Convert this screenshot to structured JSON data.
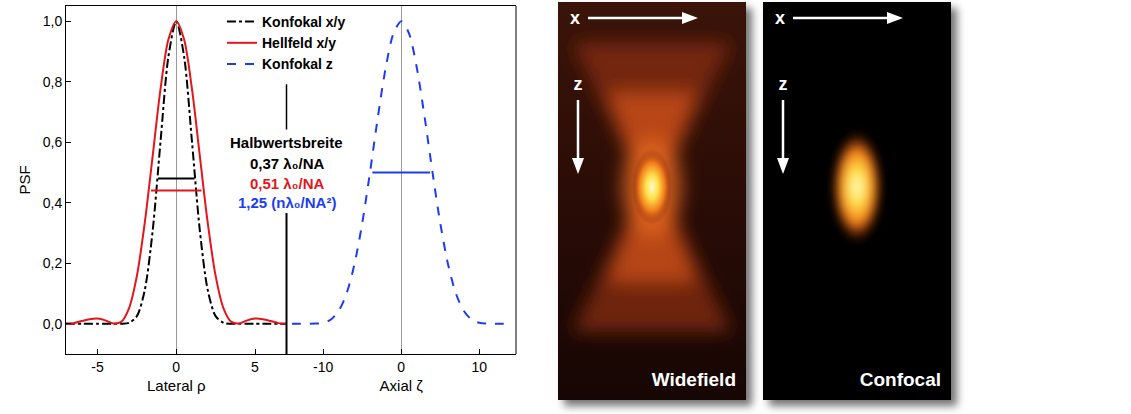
{
  "chart_data": {
    "type": "line",
    "y_label": "PSF",
    "ylim": [
      -0.1,
      1.05
    ],
    "yticks": [
      {
        "value": 0,
        "label": "0,0"
      },
      {
        "value": 0.2,
        "label": "0,2"
      },
      {
        "value": 0.4,
        "label": "0,4"
      },
      {
        "value": 0.6,
        "label": "0,6"
      },
      {
        "value": 0.8,
        "label": "0,8"
      },
      {
        "value": 1,
        "label": "1,0"
      }
    ],
    "grid": false,
    "legend": "top",
    "panels": [
      {
        "x_label": "Lateral ρ",
        "xlim": [
          -7,
          7
        ],
        "xticks": [
          -5,
          0,
          5
        ],
        "series": [
          {
            "name": "Konfokal x/y",
            "color": "#000000",
            "line_style": "dashdot",
            "x": [
              -7,
              -6.5,
              -6,
              -5.5,
              -5,
              -4.5,
              -4,
              -3.5,
              -3,
              -2.5,
              -2,
              -1.5,
              -1,
              -0.5,
              0,
              0.5,
              1,
              1.5,
              2,
              2.5,
              3,
              3.5,
              4,
              4.5,
              5,
              5.5,
              6,
              6.5,
              7
            ],
            "values": [
              0,
              0,
              0.0001,
              0.0002,
              0.0003,
              0.0001,
              0,
              0,
              0.003,
              0.025,
              0.111,
              0.306,
              0.601,
              0.882,
              1,
              0.882,
              0.601,
              0.306,
              0.111,
              0.025,
              0.003,
              0,
              0,
              0.0001,
              0.0003,
              0.0002,
              0.0001,
              0,
              0
            ],
            "fwhm": {
              "y": 0.48,
              "x": [
                -1.16,
                1.16
              ]
            }
          },
          {
            "name": "Hellfeld x/y",
            "color": "#e3161b",
            "line_style": "solid",
            "x": [
              -7,
              -6.5,
              -6,
              -5.5,
              -5,
              -4.5,
              -4,
              -3.5,
              -3,
              -2.5,
              -2,
              -1.5,
              -1,
              -0.5,
              0,
              0.5,
              1,
              1.5,
              2,
              2.5,
              3,
              3.5,
              4,
              4.5,
              5,
              5.5,
              6,
              6.5,
              7
            ],
            "values": [
              0,
              0.002,
              0.009,
              0.015,
              0.017,
              0.011,
              0.001,
              0.006,
              0.051,
              0.158,
              0.333,
              0.553,
              0.775,
              0.939,
              1,
              0.939,
              0.775,
              0.553,
              0.333,
              0.158,
              0.051,
              0.006,
              0.001,
              0.011,
              0.017,
              0.015,
              0.009,
              0.002,
              0
            ],
            "fwhm": {
              "y": 0.44,
              "x": [
                -1.6,
                1.6
              ]
            }
          }
        ]
      },
      {
        "x_label": "Axial ζ",
        "xlim": [
          -14.7,
          14.7
        ],
        "xticks": [
          -10,
          0,
          10
        ],
        "series": [
          {
            "name": "Konfokal z",
            "color": "#1c3cf0",
            "line_style": "dash",
            "x": [
              -14,
              -13,
              -12,
              -11,
              -10,
              -9,
              -8,
              -7,
              -6,
              -5,
              -4,
              -3,
              -2,
              -1,
              0,
              1,
              2,
              3,
              4,
              5,
              6,
              7,
              8,
              9,
              10,
              11,
              12,
              13,
              14
            ],
            "values": [
              0,
              0,
              0,
              0.0004,
              0.003,
              0.014,
              0.043,
              0.1,
              0.196,
              0.332,
              0.501,
              0.682,
              0.845,
              0.959,
              1,
              0.959,
              0.845,
              0.682,
              0.501,
              0.332,
              0.196,
              0.1,
              0.043,
              0.014,
              0.003,
              0.0004,
              0,
              0,
              0
            ],
            "fwhm": {
              "y": 0.5,
              "x": [
                -3.7,
                3.7
              ]
            }
          }
        ]
      }
    ],
    "annotations": [
      {
        "text": "Halbwertsbreite",
        "color": "#000000"
      },
      {
        "text": "0,37 λ₀/NA",
        "color": "#000000"
      },
      {
        "text": "0,51 λ₀/NA",
        "color": "#e3161b"
      },
      {
        "text": "1,25 (nλ₀/NA²)",
        "color": "#1c3cf0"
      }
    ]
  },
  "images": [
    {
      "label": "Widefield",
      "x_label": "x",
      "z_label": "z"
    },
    {
      "label": "Confocal",
      "x_label": "x",
      "z_label": "z"
    }
  ]
}
